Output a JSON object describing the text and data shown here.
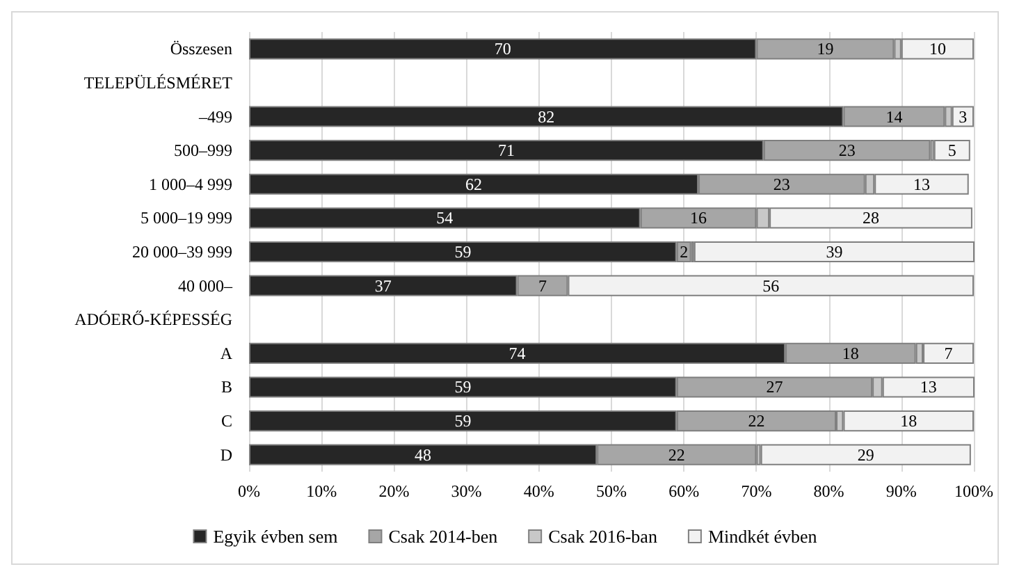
{
  "chart_data": {
    "type": "bar",
    "orientation": "horizontal",
    "stacked": true,
    "categories": [
      "Összesen",
      "TELEPÜLÉSMÉRET",
      "–499",
      "500–999",
      "1 000–4 999",
      "5 000–19 999",
      "20 000–39 999",
      "40 000–",
      "ADÓERŐ-KÉPESSÉG",
      "A",
      "B",
      "C",
      "D"
    ],
    "series": [
      {
        "name": "Egyik évben sem",
        "color": "#262626",
        "values": [
          70,
          null,
          82,
          71,
          62,
          54,
          59,
          37,
          null,
          74,
          59,
          59,
          48
        ],
        "value_labels": [
          "70",
          null,
          "82",
          "71",
          "62",
          "54",
          "59",
          "37",
          null,
          "74",
          "59",
          "59",
          "48"
        ]
      },
      {
        "name": "Csak 2014-ben",
        "color": "#a6a6a6",
        "values": [
          19,
          null,
          14,
          23,
          23,
          16,
          2,
          7,
          null,
          18,
          27,
          22,
          22
        ],
        "value_labels": [
          "19",
          null,
          "14",
          "23",
          "23",
          "16",
          "2",
          "7",
          null,
          "18",
          "27",
          "22",
          "22"
        ]
      },
      {
        "name": "Csak 2016-ban",
        "color": "#c8c8c8",
        "values": [
          1,
          null,
          1,
          0.5,
          1.3,
          1.8,
          0.4,
          null,
          null,
          1,
          1.4,
          1,
          0.6
        ]
      },
      {
        "name": "Mindkét évben",
        "color": "#f2f2f2",
        "values": [
          10,
          null,
          3,
          5,
          13,
          28,
          39,
          56,
          null,
          7,
          13,
          18,
          29
        ],
        "value_labels": [
          "10",
          null,
          "3",
          "5",
          "13",
          "28",
          "39",
          "56",
          null,
          "7",
          "13",
          "18",
          "29"
        ]
      }
    ],
    "xlim": [
      0,
      100
    ],
    "xticks": [
      {
        "value": 0,
        "label": "0%"
      },
      {
        "value": 10,
        "label": "10%"
      },
      {
        "value": 20,
        "label": "20%"
      },
      {
        "value": 30,
        "label": "30%"
      },
      {
        "value": 40,
        "label": "40%"
      },
      {
        "value": 50,
        "label": "50%"
      },
      {
        "value": 60,
        "label": "60%"
      },
      {
        "value": 70,
        "label": "70%"
      },
      {
        "value": 80,
        "label": "80%"
      },
      {
        "value": 90,
        "label": "90%"
      },
      {
        "value": 100,
        "label": "100%"
      }
    ],
    "grid": "x",
    "legend": "bottom"
  }
}
